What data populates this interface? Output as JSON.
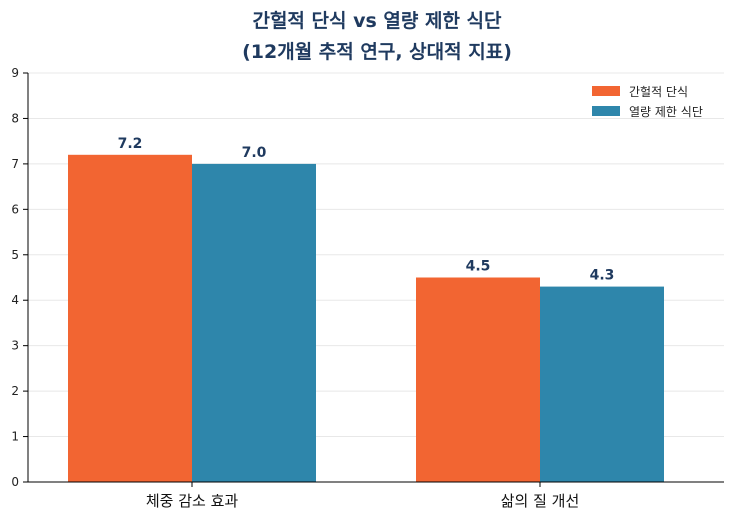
{
  "chart_data": {
    "type": "bar",
    "title": "간헐적 단식 vs 열량 제한 식단",
    "subtitle": "(12개월 추적 연구, 상대적 지표)",
    "xlabel": "",
    "ylabel": "",
    "categories": [
      "체중 감소 효과",
      "삶의 질 개선"
    ],
    "series": [
      {
        "name": "간헐적 단식",
        "values": [
          7.2,
          4.5
        ],
        "color": "#f26532"
      },
      {
        "name": "열량 제한 식단",
        "values": [
          7.0,
          4.3
        ],
        "color": "#2e86ab"
      }
    ],
    "data_labels": [
      [
        "7.2",
        "4.5"
      ],
      [
        "7.0",
        "4.3"
      ]
    ],
    "ylim": [
      0,
      9
    ],
    "yticks": [
      "0",
      "1",
      "2",
      "3",
      "4",
      "5",
      "6",
      "7",
      "8",
      "9"
    ],
    "grid": true,
    "legend_position": "top-right",
    "colors": {
      "title": "#1f3a5f",
      "data_label": "#1f3a5f",
      "axis": "#000000",
      "grid": "#e8e8e8"
    }
  }
}
